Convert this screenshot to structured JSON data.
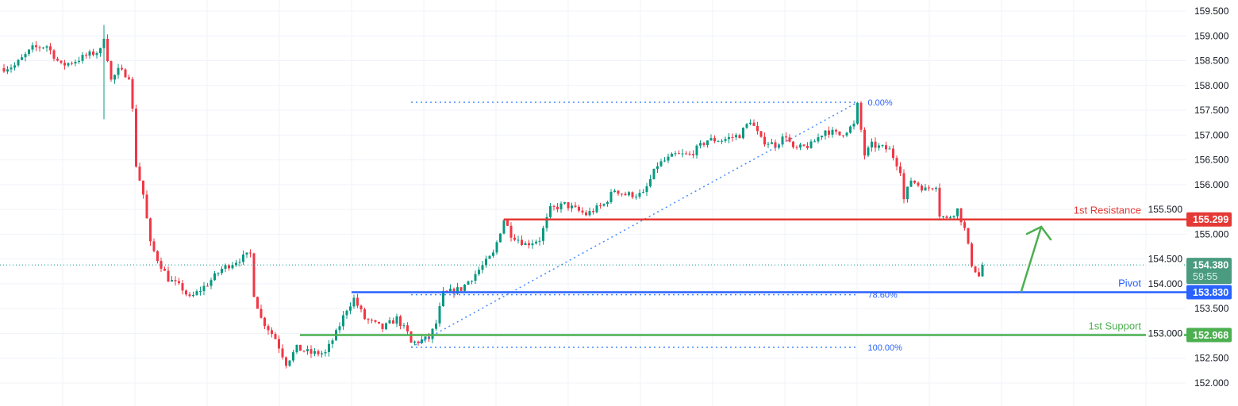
{
  "chart_data": {
    "type": "candlestick",
    "y_axis": {
      "ylim": [
        151.9,
        159.65
      ],
      "ticks": [
        "159.500",
        "159.000",
        "158.500",
        "158.000",
        "157.500",
        "157.000",
        "156.500",
        "156.000",
        "155.500",
        "155.000",
        "154.500",
        "154.000",
        "153.500",
        "153.000",
        "152.500",
        "152.000"
      ],
      "position": "right"
    },
    "grid": true,
    "colors": {
      "up": "#089981",
      "down": "#f23645",
      "resistance": "#e53935",
      "pivot": "#2962ff",
      "support": "#4caf50",
      "fib": "#2962ff",
      "arrow": "#4caf50"
    },
    "bar_count": 275,
    "close_path": [
      [
        0,
        158.35
      ],
      [
        3,
        158.4
      ],
      [
        8,
        158.75
      ],
      [
        12,
        158.8
      ],
      [
        16,
        158.4
      ],
      [
        20,
        158.5
      ],
      [
        23,
        158.6
      ],
      [
        27,
        158.7
      ],
      [
        28,
        159.0
      ],
      [
        30,
        158.1
      ],
      [
        32,
        158.3
      ],
      [
        35,
        158.2
      ],
      [
        36,
        157.5
      ],
      [
        37,
        156.4
      ],
      [
        39,
        155.8
      ],
      [
        41,
        154.8
      ],
      [
        43,
        154.5
      ],
      [
        46,
        154.1
      ],
      [
        50,
        153.9
      ],
      [
        52,
        153.7
      ],
      [
        57,
        154.0
      ],
      [
        61,
        154.3
      ],
      [
        66,
        154.5
      ],
      [
        69,
        154.6
      ],
      [
        70,
        153.8
      ],
      [
        72,
        153.3
      ],
      [
        76,
        152.9
      ],
      [
        79,
        152.4
      ],
      [
        82,
        152.7
      ],
      [
        86,
        152.6
      ],
      [
        90,
        152.6
      ],
      [
        93,
        153.0
      ],
      [
        96,
        153.5
      ],
      [
        98,
        153.7
      ],
      [
        101,
        153.3
      ],
      [
        106,
        153.1
      ],
      [
        110,
        153.3
      ],
      [
        113,
        153.0
      ],
      [
        114,
        152.8
      ],
      [
        119,
        152.9
      ],
      [
        121,
        153.2
      ],
      [
        123,
        153.8
      ],
      [
        128,
        153.9
      ],
      [
        132,
        154.2
      ],
      [
        137,
        154.6
      ],
      [
        140,
        155.3
      ],
      [
        142,
        155.0
      ],
      [
        146,
        154.8
      ],
      [
        150,
        154.9
      ],
      [
        153,
        155.5
      ],
      [
        157,
        155.6
      ],
      [
        163,
        155.4
      ],
      [
        168,
        155.6
      ],
      [
        171,
        155.9
      ],
      [
        174,
        155.8
      ],
      [
        179,
        155.8
      ],
      [
        183,
        156.4
      ],
      [
        188,
        156.6
      ],
      [
        192,
        156.6
      ],
      [
        197,
        156.9
      ],
      [
        201,
        156.9
      ],
      [
        206,
        157.0
      ],
      [
        209,
        157.3
      ],
      [
        212,
        156.9
      ],
      [
        216,
        156.8
      ],
      [
        219,
        157.0
      ],
      [
        221,
        156.7
      ],
      [
        226,
        156.8
      ],
      [
        230,
        157.1
      ],
      [
        234,
        157.0
      ],
      [
        238,
        157.2
      ],
      [
        239,
        157.6
      ],
      [
        241,
        156.6
      ],
      [
        243,
        156.8
      ],
      [
        248,
        156.7
      ],
      [
        251,
        156.3
      ],
      [
        252,
        155.7
      ],
      [
        254,
        156.1
      ],
      [
        258,
        155.9
      ],
      [
        261,
        156.0
      ],
      [
        262,
        155.4
      ],
      [
        264,
        155.3
      ],
      [
        267,
        155.5
      ],
      [
        269,
        155.1
      ],
      [
        271,
        154.4
      ],
      [
        273,
        154.15
      ],
      [
        274,
        154.38
      ]
    ],
    "current_price": {
      "value": "154.380",
      "countdown": "59:55",
      "color": "#089981"
    },
    "levels": [
      {
        "name": "1st Resistance",
        "value": 155.299,
        "tag": "155.299",
        "color": "#e53935"
      },
      {
        "name": "Pivot",
        "value": 153.83,
        "tag": "153.830",
        "color": "#2962ff"
      },
      {
        "name": "1st Support",
        "value": 152.968,
        "tag": "152.968",
        "color": "#4caf50"
      }
    ],
    "fibonacci": {
      "start_price": 152.72,
      "end_price": 157.66,
      "start_bar": 114,
      "end_bar": 239,
      "levels": [
        {
          "ratio": 0.0,
          "label": "0.00%",
          "price": 157.66
        },
        {
          "ratio": 0.786,
          "label": "78.60%",
          "price": 153.78
        },
        {
          "ratio": 1.0,
          "label": "100.00%",
          "price": 152.72
        }
      ]
    },
    "annotation_arrow": {
      "direction": "up",
      "from_price": 153.85,
      "to_price": 155.15
    }
  }
}
